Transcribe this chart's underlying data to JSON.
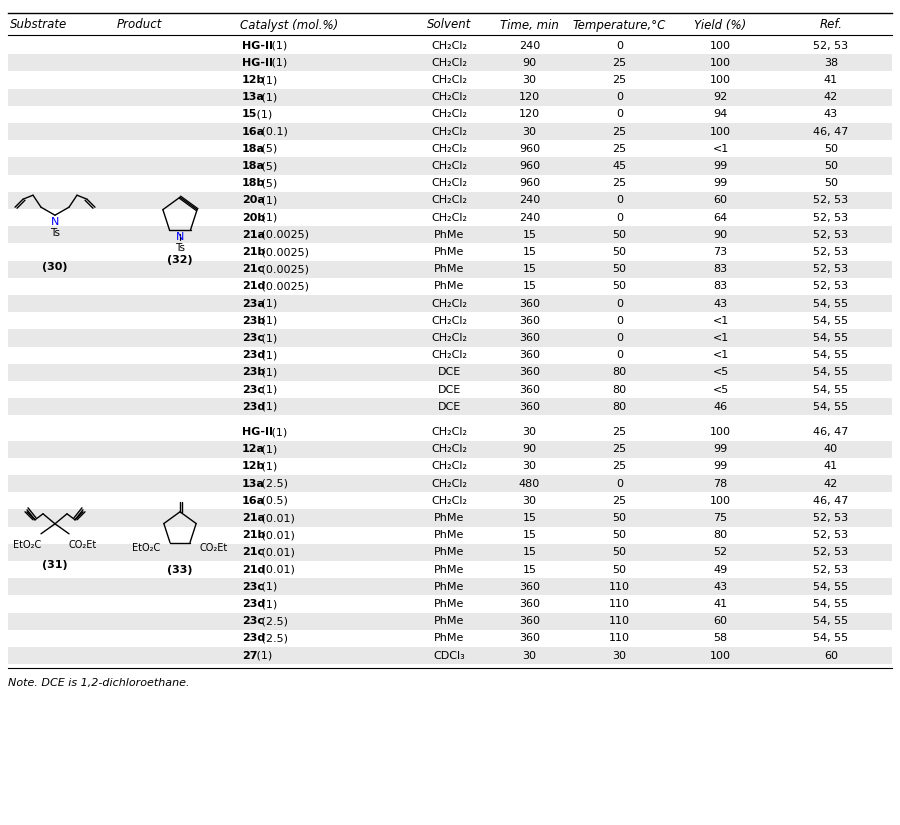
{
  "headers": [
    "Substrate",
    "Product",
    "Catalyst (mol.%)",
    "Solvent",
    "Time, min",
    "Temperature,°C",
    "Yield (%)",
    "Ref."
  ],
  "group1_rows": [
    [
      "HG-II",
      "(1)",
      "CH₂Cl₂",
      "240",
      "0",
      "100",
      "52, 53"
    ],
    [
      "HG-II",
      "(1)",
      "CH₂Cl₂",
      "90",
      "25",
      "100",
      "38"
    ],
    [
      "12b",
      "(1)",
      "CH₂Cl₂",
      "30",
      "25",
      "100",
      "41"
    ],
    [
      "13a",
      "(1)",
      "CH₂Cl₂",
      "120",
      "0",
      "92",
      "42"
    ],
    [
      "15",
      "(1)",
      "CH₂Cl₂",
      "120",
      "0",
      "94",
      "43"
    ],
    [
      "16a",
      "(0.1)",
      "CH₂Cl₂",
      "30",
      "25",
      "100",
      "46, 47"
    ],
    [
      "18a",
      "(5)",
      "CH₂Cl₂",
      "960",
      "25",
      "<1",
      "50"
    ],
    [
      "18a",
      "(5)",
      "CH₂Cl₂",
      "960",
      "45",
      "99",
      "50"
    ],
    [
      "18b",
      "(5)",
      "CH₂Cl₂",
      "960",
      "25",
      "99",
      "50"
    ],
    [
      "20a",
      "(1)",
      "CH₂Cl₂",
      "240",
      "0",
      "60",
      "52, 53"
    ],
    [
      "20b",
      "(1)",
      "CH₂Cl₂",
      "240",
      "0",
      "64",
      "52, 53"
    ],
    [
      "21a",
      "(0.0025)",
      "PhMe",
      "15",
      "50",
      "90",
      "52, 53"
    ],
    [
      "21b",
      "(0.0025)",
      "PhMe",
      "15",
      "50",
      "73",
      "52, 53"
    ],
    [
      "21c",
      "(0.0025)",
      "PhMe",
      "15",
      "50",
      "83",
      "52, 53"
    ],
    [
      "21d",
      "(0.0025)",
      "PhMe",
      "15",
      "50",
      "83",
      "52, 53"
    ],
    [
      "23a",
      "(1)",
      "CH₂Cl₂",
      "360",
      "0",
      "43",
      "54, 55"
    ],
    [
      "23b",
      "(1)",
      "CH₂Cl₂",
      "360",
      "0",
      "<1",
      "54, 55"
    ],
    [
      "23c",
      "(1)",
      "CH₂Cl₂",
      "360",
      "0",
      "<1",
      "54, 55"
    ],
    [
      "23d",
      "(1)",
      "CH₂Cl₂",
      "360",
      "0",
      "<1",
      "54, 55"
    ],
    [
      "23b",
      "(1)",
      "DCE",
      "360",
      "80",
      "<5",
      "54, 55"
    ],
    [
      "23c",
      "(1)",
      "DCE",
      "360",
      "80",
      "<5",
      "54, 55"
    ],
    [
      "23d",
      "(1)",
      "DCE",
      "360",
      "80",
      "46",
      "54, 55"
    ]
  ],
  "group2_rows": [
    [
      "HG-II",
      "(1)",
      "CH₂Cl₂",
      "30",
      "25",
      "100",
      "46, 47"
    ],
    [
      "12a",
      "(1)",
      "CH₂Cl₂",
      "90",
      "25",
      "99",
      "40"
    ],
    [
      "12b",
      "(1)",
      "CH₂Cl₂",
      "30",
      "25",
      "99",
      "41"
    ],
    [
      "13a",
      "(2.5)",
      "CH₂Cl₂",
      "480",
      "0",
      "78",
      "42"
    ],
    [
      "16a",
      "(0.5)",
      "CH₂Cl₂",
      "30",
      "25",
      "100",
      "46, 47"
    ],
    [
      "21a",
      "(0.01)",
      "PhMe",
      "15",
      "50",
      "75",
      "52, 53"
    ],
    [
      "21b",
      "(0.01)",
      "PhMe",
      "15",
      "50",
      "80",
      "52, 53"
    ],
    [
      "21c",
      "(0.01)",
      "PhMe",
      "15",
      "50",
      "52",
      "52, 53"
    ],
    [
      "21d",
      "(0.01)",
      "PhMe",
      "15",
      "50",
      "49",
      "52, 53"
    ],
    [
      "23c",
      "(1)",
      "PhMe",
      "360",
      "110",
      "43",
      "54, 55"
    ],
    [
      "23d",
      "(1)",
      "PhMe",
      "360",
      "110",
      "41",
      "54, 55"
    ],
    [
      "23c",
      "(2.5)",
      "PhMe",
      "360",
      "110",
      "60",
      "54, 55"
    ],
    [
      "23d",
      "(2.5)",
      "PhMe",
      "360",
      "110",
      "58",
      "54, 55"
    ],
    [
      "27",
      "(1)",
      "CDCl₃",
      "30",
      "30",
      "100",
      "60"
    ]
  ],
  "shaded_color": "#e8e8e8",
  "font_size": 8.0,
  "header_font_size": 8.5,
  "note_text": "Note. DCE is 1,2-dichloroethane."
}
